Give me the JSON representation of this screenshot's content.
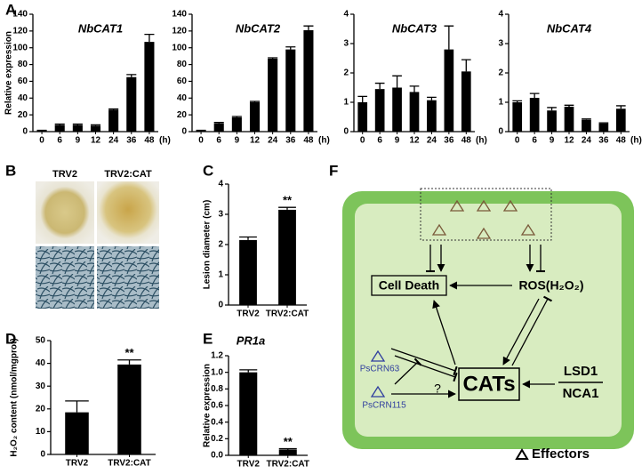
{
  "panel_letters": [
    "A",
    "B",
    "C",
    "D",
    "E",
    "F"
  ],
  "chart_data": [
    {
      "type": "bar",
      "title": "NbCAT1",
      "ylabel": "Relative expression",
      "x_unit": "(h)",
      "categories": [
        "0",
        "6",
        "9",
        "12",
        "24",
        "36",
        "48"
      ],
      "values": [
        1,
        8,
        8,
        7,
        26,
        65,
        107
      ],
      "errors": [
        0.5,
        1,
        1,
        1,
        1,
        3,
        9
      ],
      "color": "#000000",
      "ylim": [
        0,
        140
      ],
      "yticks": [
        0,
        20,
        40,
        60,
        80,
        100,
        120,
        140
      ]
    },
    {
      "type": "bar",
      "title": "NbCAT2",
      "x_unit": "(h)",
      "categories": [
        "0",
        "6",
        "9",
        "12",
        "24",
        "36",
        "48"
      ],
      "values": [
        1,
        10,
        17,
        35,
        87,
        98,
        121
      ],
      "errors": [
        0.5,
        1,
        1,
        1,
        1,
        3,
        5
      ],
      "color": "#000000",
      "ylim": [
        0,
        140
      ],
      "yticks": [
        0,
        20,
        40,
        60,
        80,
        100,
        120,
        140
      ]
    },
    {
      "type": "bar",
      "title": "NbCAT3",
      "x_unit": "(h)",
      "categories": [
        "0",
        "6",
        "9",
        "12",
        "24",
        "36",
        "48"
      ],
      "values": [
        1.0,
        1.45,
        1.5,
        1.35,
        1.07,
        2.8,
        2.05
      ],
      "errors": [
        0.2,
        0.2,
        0.4,
        0.2,
        0.1,
        0.8,
        0.4
      ],
      "color": "#000000",
      "ylim": [
        0,
        4
      ],
      "yticks": [
        0,
        1,
        2,
        3,
        4
      ]
    },
    {
      "type": "bar",
      "title": "NbCAT4",
      "x_unit": "(h)",
      "categories": [
        "0",
        "6",
        "9",
        "12",
        "24",
        "36",
        "48"
      ],
      "values": [
        1.0,
        1.15,
        0.72,
        0.85,
        0.4,
        0.28,
        0.78
      ],
      "errors": [
        0.05,
        0.15,
        0.1,
        0.05,
        0.03,
        0.02,
        0.1
      ],
      "color": "#000000",
      "ylim": [
        0,
        4
      ],
      "yticks": [
        0,
        1,
        2,
        3,
        4
      ]
    },
    {
      "type": "bar",
      "ylabel": "Lesion diameter (cm)",
      "categories": [
        "TRV2",
        "TRV2:CAT"
      ],
      "values": [
        2.15,
        3.15
      ],
      "errors": [
        0.1,
        0.08
      ],
      "significance": [
        null,
        "**"
      ],
      "color": "#000000",
      "ylim": [
        0,
        4
      ],
      "yticks": [
        0,
        1,
        2,
        3,
        4
      ]
    },
    {
      "type": "bar",
      "ylabel": "H₂O₂ content (nmol/mgprot)",
      "categories": [
        "TRV2",
        "TRV2:CAT"
      ],
      "values": [
        18.5,
        39.5
      ],
      "errors": [
        5,
        2
      ],
      "significance": [
        null,
        "**"
      ],
      "color": "#000000",
      "ylim": [
        0,
        50
      ],
      "yticks": [
        0,
        10,
        20,
        30,
        40,
        50
      ]
    },
    {
      "type": "bar",
      "title": "PR1a",
      "ylabel": "Relative expression",
      "categories": [
        "TRV2",
        "TRV2:CAT"
      ],
      "values": [
        1.0,
        0.07
      ],
      "errors": [
        0.03,
        0.01
      ],
      "significance": [
        null,
        "**"
      ],
      "color": "#000000",
      "ylim": [
        0,
        1.2
      ],
      "yticks": [
        {
          "value": 0,
          "label": "0.0"
        },
        0.2,
        0.4,
        0.6,
        0.8,
        {
          "value": 1,
          "label": "1.0"
        },
        1.2
      ]
    }
  ],
  "photos": {
    "labels": [
      "TRV2",
      "TRV2:CAT"
    ]
  },
  "diagram": {
    "cell_death": "Cell Death",
    "ros": "ROS(H₂O₂)",
    "cats": "CATs",
    "lsd1": "LSD1",
    "nca1": "NCA1",
    "effector_1": "PsCRN63",
    "effector_2": "PsCRN115",
    "unknown": "?",
    "legend": "Effectors"
  }
}
